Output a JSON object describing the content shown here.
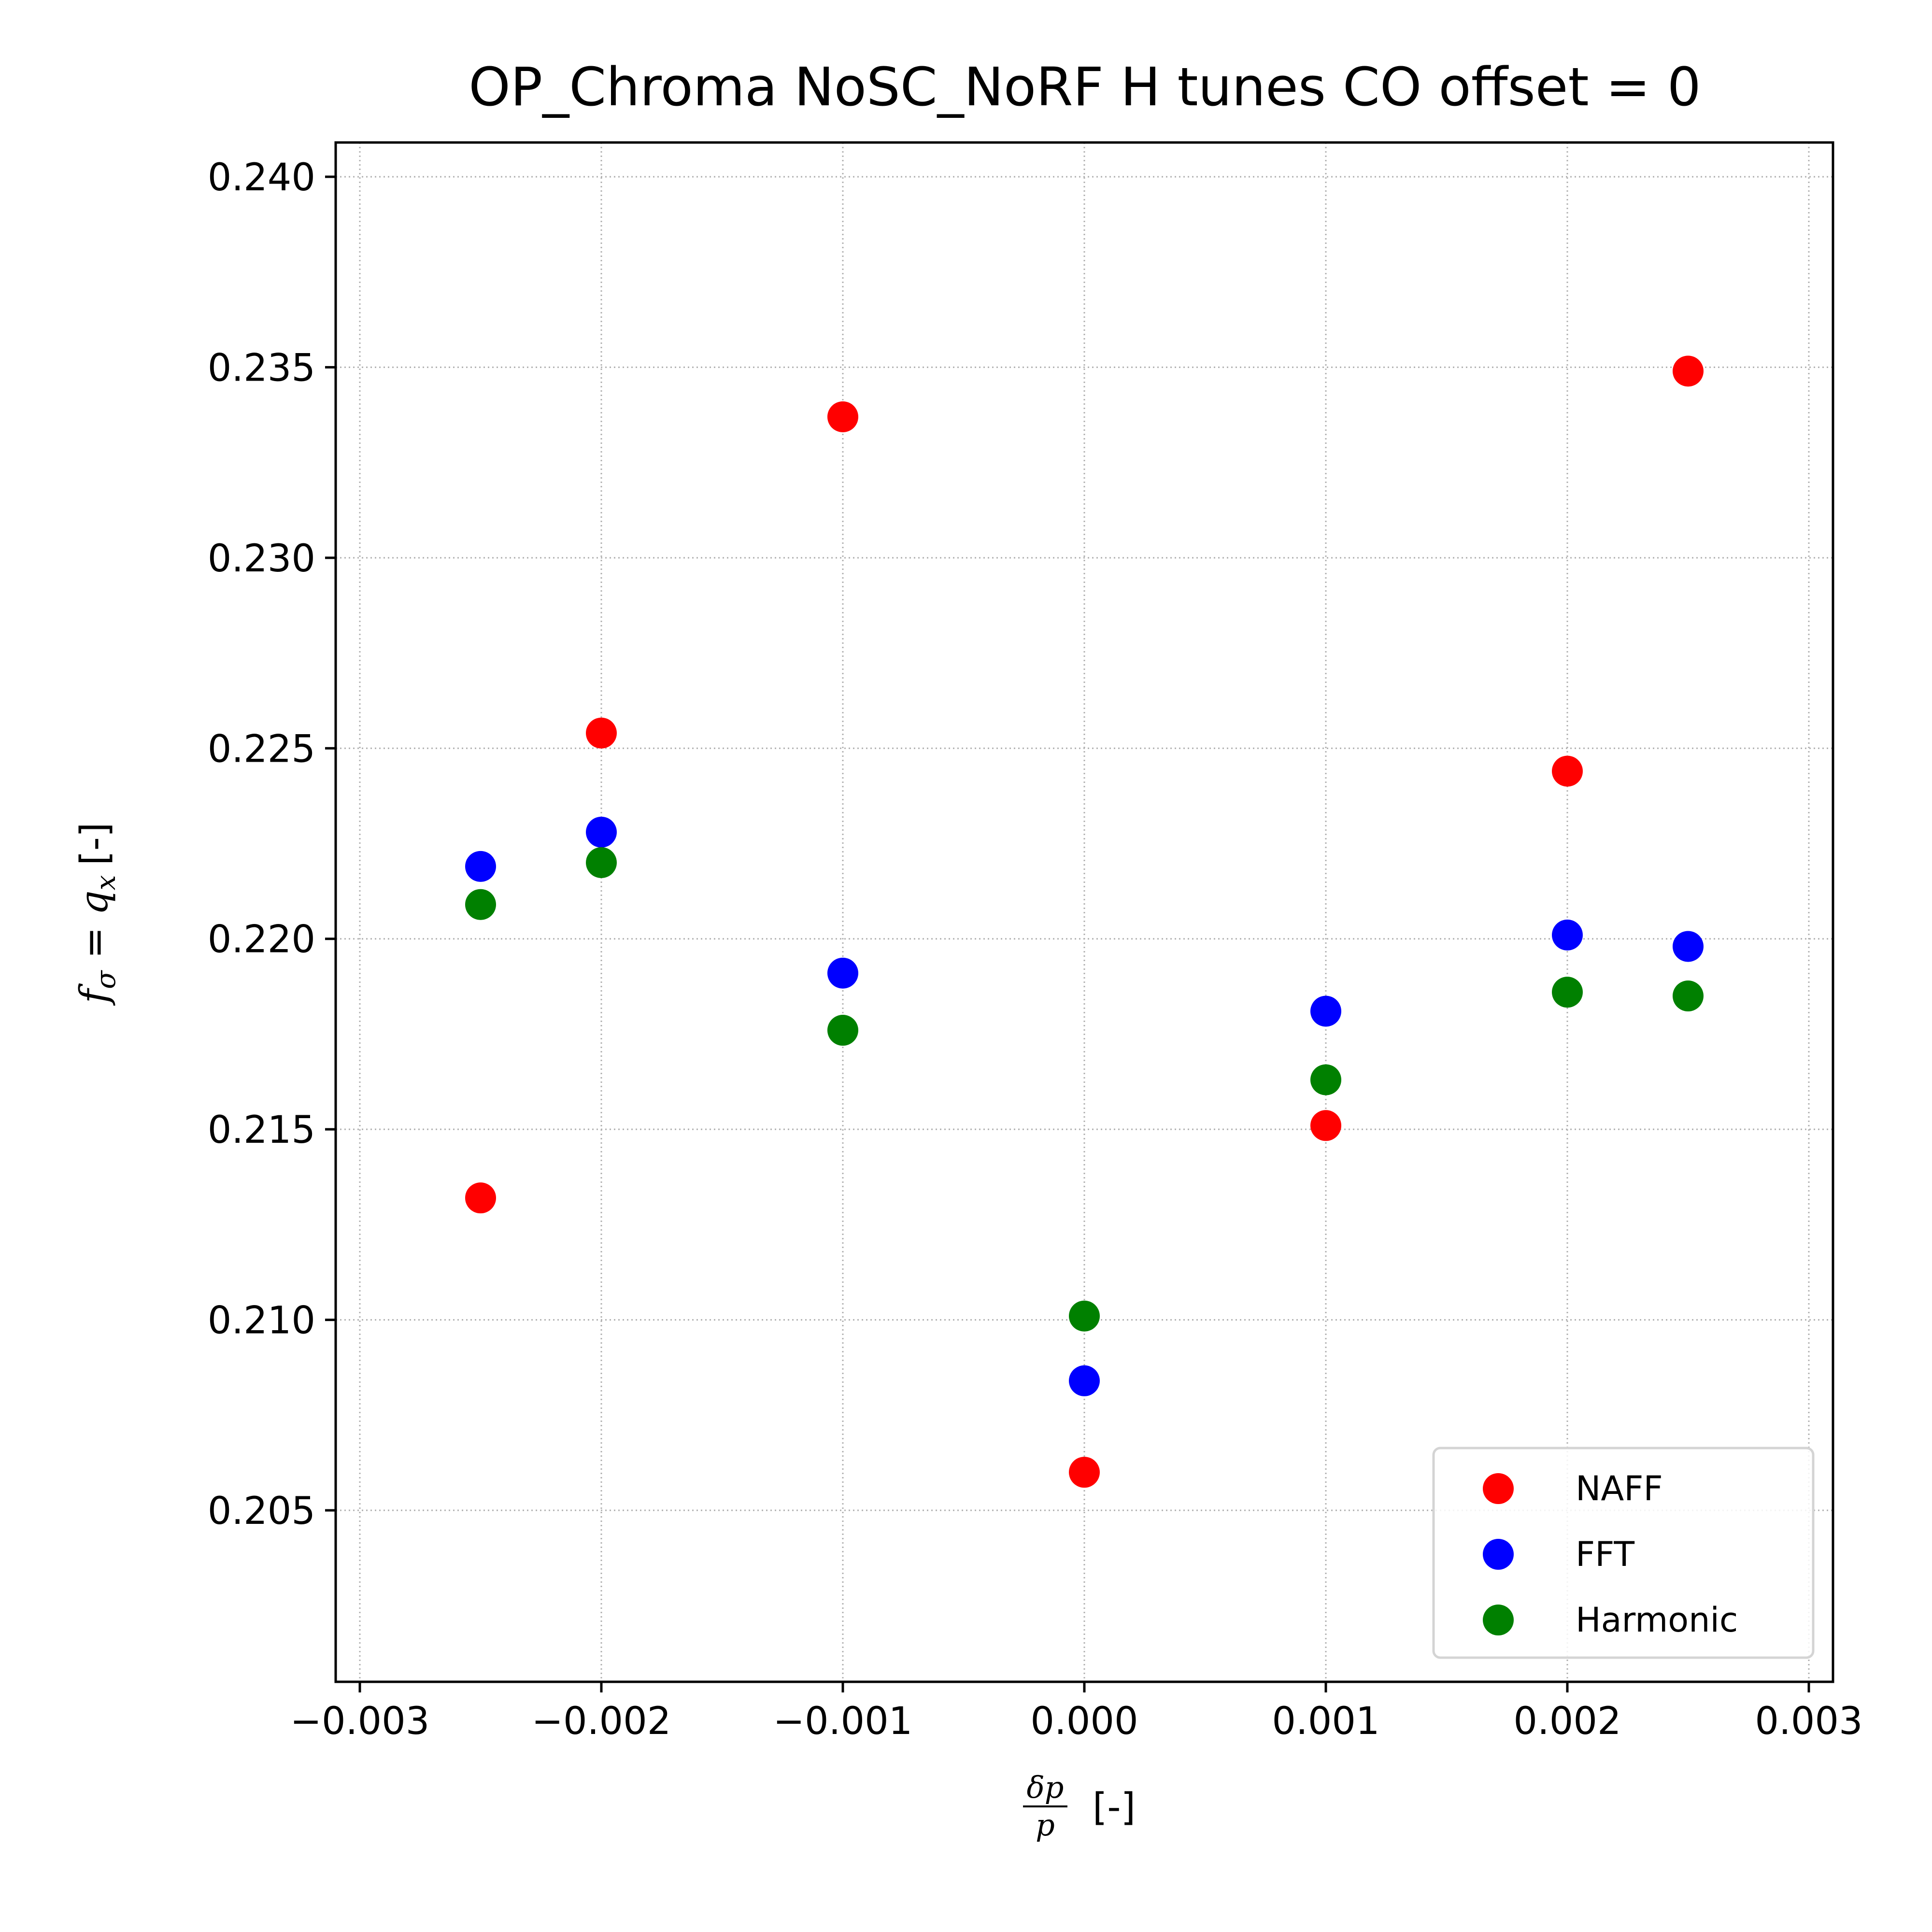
{
  "chart_data": {
    "type": "scatter",
    "title": "OP_Chroma NoSC_NoRF H tunes CO offset = 0",
    "xlabel_parts": {
      "numerator": "δp",
      "denominator": "p",
      "suffix": "[-]"
    },
    "ylabel_parts": {
      "lhs": "f",
      "lhs_sub": "σ",
      "eq": " = ",
      "rhs": "q",
      "rhs_sub": "x",
      "suffix": "[-]"
    },
    "xlim": [
      -0.0031,
      0.0031
    ],
    "ylim": [
      0.2005,
      0.2409
    ],
    "x_ticks": [
      -0.003,
      -0.002,
      -0.001,
      0.0,
      0.001,
      0.002,
      0.003
    ],
    "x_tick_labels": [
      "−0.003",
      "−0.002",
      "−0.001",
      "0.000",
      "0.001",
      "0.002",
      "0.003"
    ],
    "y_ticks": [
      0.205,
      0.21,
      0.215,
      0.22,
      0.225,
      0.23,
      0.235,
      0.24
    ],
    "y_tick_labels": [
      "0.205",
      "0.210",
      "0.215",
      "0.220",
      "0.225",
      "0.230",
      "0.235",
      "0.240"
    ],
    "grid": true,
    "legend_position": "lower-right",
    "series": [
      {
        "name": "NAFF",
        "color": "#ff0000",
        "x": [
          -0.0025,
          -0.002,
          -0.001,
          0.0,
          0.001,
          0.002,
          0.0025
        ],
        "y": [
          0.2132,
          0.2254,
          0.2337,
          0.206,
          0.2151,
          0.2244,
          0.2349
        ]
      },
      {
        "name": "FFT",
        "color": "#0000ff",
        "x": [
          -0.0025,
          -0.002,
          -0.001,
          0.0,
          0.001,
          0.002,
          0.0025
        ],
        "y": [
          0.2219,
          0.2228,
          0.2191,
          0.2084,
          0.2181,
          0.2201,
          0.2198
        ]
      },
      {
        "name": "Harmonic",
        "color": "#008000",
        "x": [
          -0.0025,
          -0.002,
          -0.001,
          0.0,
          0.001,
          0.002,
          0.0025
        ],
        "y": [
          0.2209,
          0.222,
          0.2176,
          0.2101,
          0.2163,
          0.2186,
          0.2185
        ]
      }
    ]
  }
}
